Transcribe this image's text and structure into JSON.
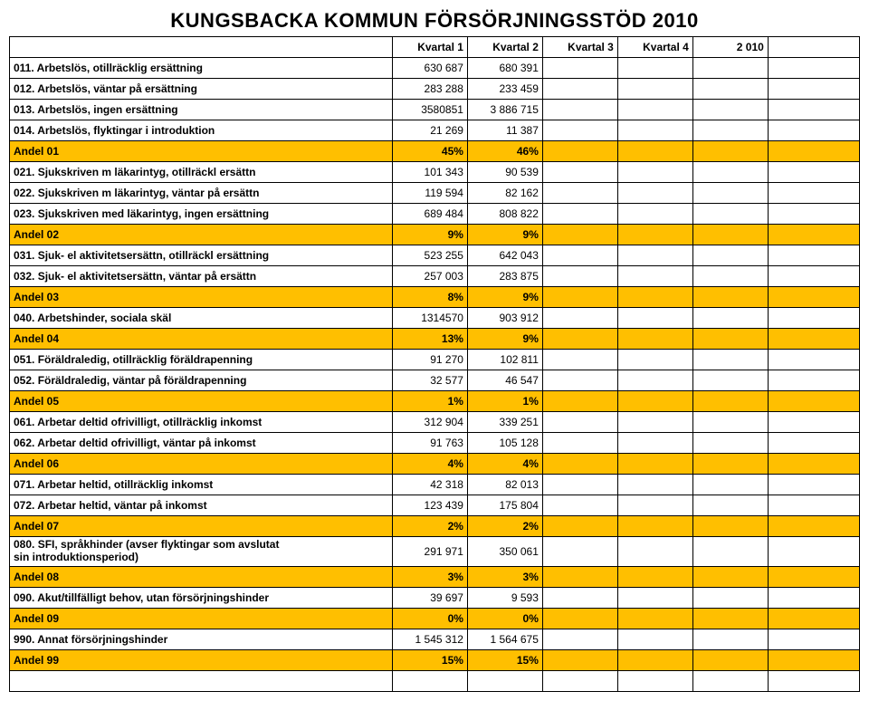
{
  "title": "KUNGSBACKA KOMMUN FÖRSÖRJNINGSSTÖD 2010",
  "headers": {
    "q1": "Kvartal 1",
    "q2": "Kvartal 2",
    "q3": "Kvartal 3",
    "q4": "Kvartal 4",
    "year": "2 010"
  },
  "colors": {
    "andel_bg": "#ffbf00",
    "border": "#000000",
    "text": "#000000",
    "page_bg": "#ffffff"
  },
  "rows": [
    {
      "type": "data",
      "label": "011. Arbetslös, otillräcklig ersättning",
      "q1": "630 687",
      "q2": "680 391"
    },
    {
      "type": "data",
      "label": "012. Arbetslös, väntar på ersättning",
      "q1": "283 288",
      "q2": "233 459"
    },
    {
      "type": "data",
      "label": "013. Arbetslös, ingen ersättning",
      "q1": "3580851",
      "q2": "3 886 715"
    },
    {
      "type": "data",
      "label": "014. Arbetslös, flyktingar i introduktion",
      "q1": "21 269",
      "q2": "11 387"
    },
    {
      "type": "andel",
      "label": "Andel 01",
      "q1": "45%",
      "q2": "46%"
    },
    {
      "type": "data",
      "label": "021. Sjukskriven m läkarintyg, otillräckl ersättn",
      "q1": "101 343",
      "q2": "90 539"
    },
    {
      "type": "data",
      "label": "022. Sjukskriven m läkarintyg, väntar på ersättn",
      "q1": "119 594",
      "q2": "82 162"
    },
    {
      "type": "data",
      "label": "023. Sjukskriven med läkarintyg, ingen ersättning",
      "q1": "689 484",
      "q2": "808 822"
    },
    {
      "type": "andel",
      "label": "Andel 02",
      "q1": "9%",
      "q2": "9%"
    },
    {
      "type": "data",
      "label": "031. Sjuk- el aktivitetsersättn, otillräckl ersättning",
      "q1": "523 255",
      "q2": "642 043"
    },
    {
      "type": "data",
      "label": "032. Sjuk- el aktivitetsersättn, väntar på ersättn",
      "q1": "257 003",
      "q2": "283 875"
    },
    {
      "type": "andel",
      "label": "Andel 03",
      "q1": "8%",
      "q2": "9%"
    },
    {
      "type": "data",
      "label": "040. Arbetshinder, sociala skäl",
      "q1": "1314570",
      "q2": "903 912"
    },
    {
      "type": "andel",
      "label": "Andel 04",
      "q1": "13%",
      "q2": "9%"
    },
    {
      "type": "data",
      "label": "051. Föräldraledig, otillräcklig föräldrapenning",
      "q1": "91 270",
      "q2": "102 811"
    },
    {
      "type": "data",
      "label": "052. Föräldraledig, väntar på föräldrapenning",
      "q1": "32 577",
      "q2": "46 547"
    },
    {
      "type": "andel",
      "label": "Andel 05",
      "q1": "1%",
      "q2": "1%"
    },
    {
      "type": "data",
      "label": "061. Arbetar deltid ofrivilligt, otillräcklig inkomst",
      "q1": "312 904",
      "q2": "339 251"
    },
    {
      "type": "data",
      "label": "062. Arbetar deltid ofrivilligt, väntar på inkomst",
      "q1": "91 763",
      "q2": "105 128"
    },
    {
      "type": "andel",
      "label": "Andel 06",
      "q1": "4%",
      "q2": "4%"
    },
    {
      "type": "data",
      "label": "071. Arbetar heltid, otillräcklig inkomst",
      "q1": "42 318",
      "q2": "82 013"
    },
    {
      "type": "data",
      "label": "072. Arbetar heltid, väntar på inkomst",
      "q1": "123 439",
      "q2": "175 804"
    },
    {
      "type": "andel",
      "label": "Andel 07",
      "q1": "2%",
      "q2": "2%"
    },
    {
      "type": "data",
      "multiline": true,
      "label": "080. SFI, språkhinder (avser flyktingar som avslutat\nsin introduktionsperiod)",
      "q1": "291 971",
      "q2": "350 061"
    },
    {
      "type": "andel",
      "label": "Andel 08",
      "q1": "3%",
      "q2": "3%"
    },
    {
      "type": "data",
      "label": "090. Akut/tillfälligt behov, utan försörjningshinder",
      "q1": "39 697",
      "q2": "9 593"
    },
    {
      "type": "andel",
      "label": "Andel 09",
      "q1": "0%",
      "q2": "0%"
    },
    {
      "type": "data",
      "label": "990. Annat försörjningshinder",
      "q1": "1 545 312",
      "q2": "1 564 675"
    },
    {
      "type": "andel",
      "label": "Andel 99",
      "q1": "15%",
      "q2": "15%"
    },
    {
      "type": "blankrow"
    }
  ]
}
